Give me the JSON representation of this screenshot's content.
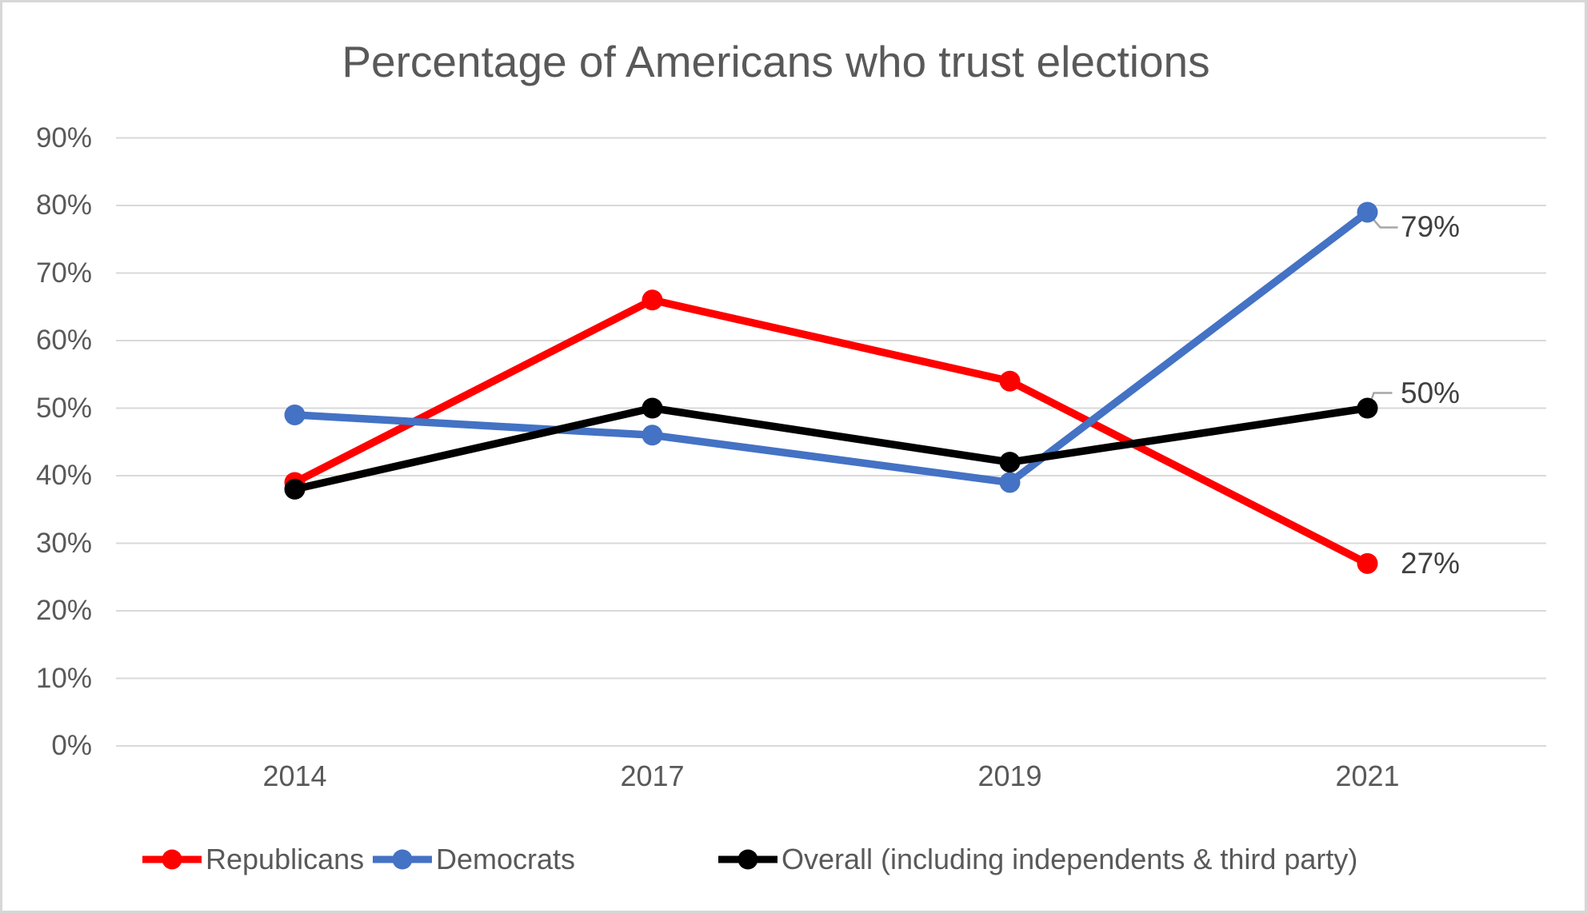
{
  "chart_data": {
    "type": "line",
    "title": "Percentage of Americans who trust elections",
    "categories": [
      "2014",
      "2017",
      "2019",
      "2021"
    ],
    "series": [
      {
        "name": "Republicans",
        "color": "#FF0000",
        "values": [
          39,
          66,
          54,
          27
        ]
      },
      {
        "name": "Democrats",
        "color": "#4472C4",
        "values": [
          49,
          46,
          39,
          79
        ]
      },
      {
        "name": "Overall (including independents & third party)",
        "color": "#000000",
        "values": [
          38,
          50,
          42,
          50
        ]
      }
    ],
    "end_labels": [
      {
        "series": "Democrats",
        "text": "79%"
      },
      {
        "series": "Overall (including independents & third party)",
        "text": "50%"
      },
      {
        "series": "Republicans",
        "text": "27%"
      }
    ],
    "y_axis": {
      "ticks": [
        0,
        10,
        20,
        30,
        40,
        50,
        60,
        70,
        80,
        90
      ],
      "tick_labels": [
        "0%",
        "10%",
        "20%",
        "30%",
        "40%",
        "50%",
        "60%",
        "70%",
        "80%",
        "90%"
      ],
      "range": [
        0,
        90
      ]
    },
    "x_axis": {
      "tick_labels": [
        "2014",
        "2017",
        "2019",
        "2021"
      ]
    },
    "grid": true,
    "legend_position": "bottom",
    "colors": {
      "title_text": "#595959",
      "axis_text": "#595959",
      "data_label_text": "#404040",
      "gridline": "#D9D9D9",
      "leader_line": "#A6A6A6",
      "background": "#FFFFFF",
      "frame_border": "#D7D7D7"
    }
  }
}
